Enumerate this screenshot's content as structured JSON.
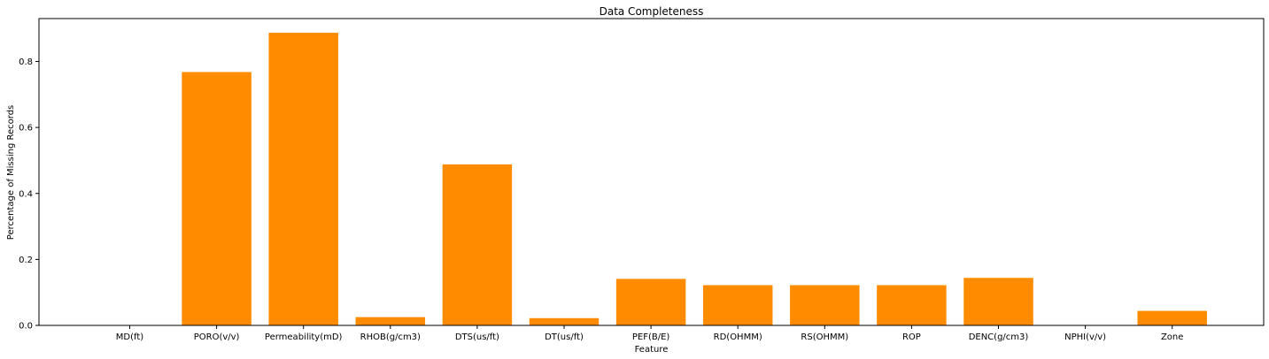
{
  "chart_data": {
    "type": "bar",
    "title": "Data Completeness",
    "xlabel": "Feature",
    "ylabel": "Percentage of Missing Records",
    "categories": [
      "MD(ft)",
      "PORO(v/v)",
      "Permeability(mD)",
      "RHOB(g/cm3)",
      "DTS(us/ft)",
      "DT(us/ft)",
      "PEF(B/E)",
      "RD(OHMM)",
      "RS(OHMM)",
      "ROP",
      "DENC(g/cm3)",
      "NPHI(v/v)",
      "Zone"
    ],
    "values": [
      0.0,
      0.768,
      0.887,
      0.025,
      0.488,
      0.022,
      0.141,
      0.122,
      0.122,
      0.122,
      0.144,
      0.0,
      0.044
    ],
    "ylim": [
      0,
      0.93
    ],
    "yticks": [
      0.0,
      0.2,
      0.4,
      0.6,
      0.8
    ],
    "ytick_labels": [
      "0.0",
      "0.2",
      "0.4",
      "0.6",
      "0.8"
    ],
    "bar_color": "#ff8c00",
    "grid": false,
    "legend": "none"
  }
}
